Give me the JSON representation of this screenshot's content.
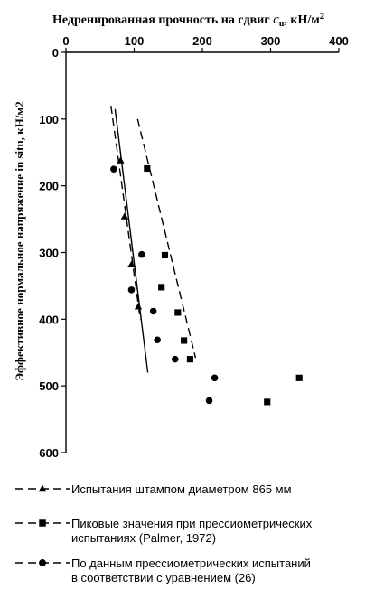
{
  "chart_data": {
    "type": "scatter",
    "title": {
      "main": "Недренированная прочность на сдвиг ",
      "symbol": "c",
      "subscript": "u",
      "unit": ", кН/м",
      "superscript": "2"
    },
    "xlabel": "Недренированная прочность на сдвиг cu, кН/м2",
    "ylabel": "Эффективное нормальное напряжение in situ, кН/м2",
    "x_axis_position": "top",
    "y_inverted": true,
    "xlim": [
      0,
      400
    ],
    "ylim": [
      0,
      600
    ],
    "xticks": [
      0,
      100,
      200,
      300,
      400
    ],
    "yticks": [
      0,
      100,
      200,
      300,
      400,
      500,
      600
    ],
    "grid": false,
    "legend_position": "bottom",
    "series": [
      {
        "name": "Испытания штампом диаметром 865 мм",
        "marker": "triangle",
        "line_style": "dashed",
        "points": [
          [
            80,
            162
          ],
          [
            86,
            246
          ],
          [
            96,
            318
          ],
          [
            106,
            381
          ]
        ]
      },
      {
        "name": "Пиковые значения при прессиометрических испытаниях (Palmer, 1972)",
        "marker": "square",
        "line_style": "dashed",
        "points": [
          [
            119,
            174
          ],
          [
            145,
            304
          ],
          [
            140,
            352
          ],
          [
            164,
            390
          ],
          [
            173,
            432
          ],
          [
            182,
            460
          ],
          [
            295,
            524
          ],
          [
            342,
            488
          ]
        ]
      },
      {
        "name": "По данным прессиометрических испытаний в соответствии с уравнением (26)",
        "marker": "circle",
        "line_style": "dashed",
        "points": [
          [
            70,
            175
          ],
          [
            111,
            303
          ],
          [
            96,
            356
          ],
          [
            128,
            388
          ],
          [
            134,
            431
          ],
          [
            160,
            460
          ],
          [
            218,
            488
          ],
          [
            210,
            522
          ]
        ]
      }
    ],
    "trend_lines": [
      {
        "style": "dashed",
        "from": [
          66,
          80
        ],
        "to": [
          109,
          400
        ]
      },
      {
        "style": "solid",
        "from": [
          72,
          85
        ],
        "to": [
          120,
          480
        ]
      },
      {
        "style": "dashed",
        "from": [
          105,
          100
        ],
        "to": [
          190,
          458
        ]
      }
    ]
  },
  "legend": [
    {
      "marker": "triangle",
      "label_lines": [
        "Испытания штампом диаметром 865 мм"
      ]
    },
    {
      "marker": "square",
      "label_lines": [
        "Пиковые значения при прессиометрических",
        "испытаниях (Palmer, 1972)"
      ]
    },
    {
      "marker": "circle",
      "label_lines": [
        "По данным прессиометрических испытаний",
        "в соответствии с уравнением (26)"
      ]
    }
  ]
}
